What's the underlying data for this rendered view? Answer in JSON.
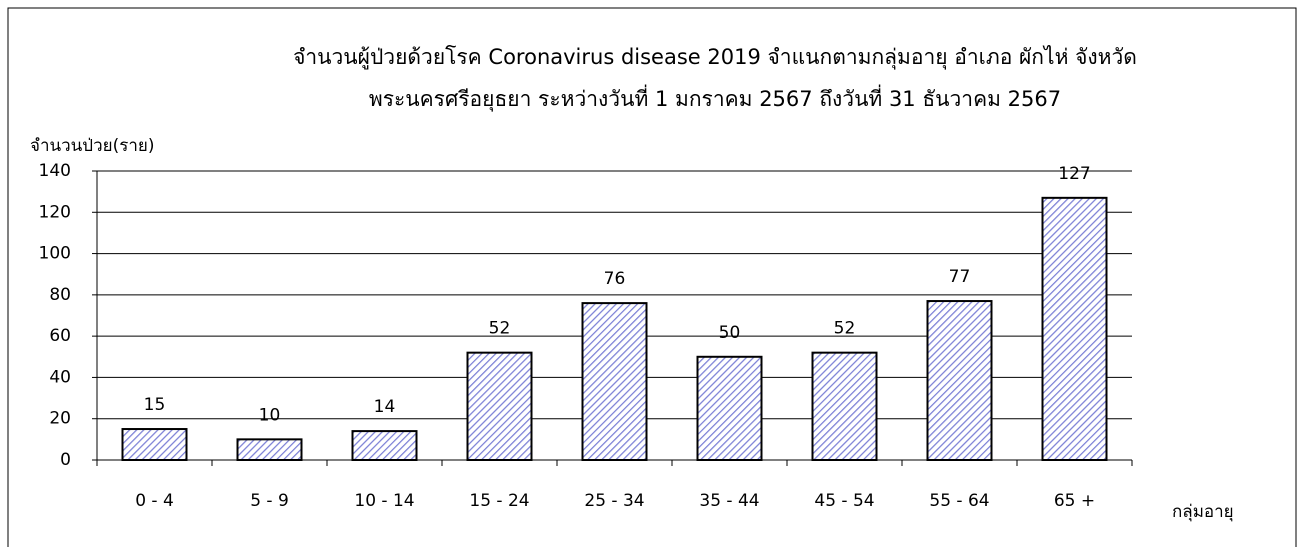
{
  "chart_data": {
    "type": "bar",
    "title": [
      "จำนวนผู้ป่วยด้วยโรค Coronavirus disease 2019  จำแนกตามกลุ่มอายุ อำเภอ  ผักไห่ จังหวัด",
      "พระนครศรีอยุธยา  ระหว่างวันที่  1 มกราคม 2567  ถึงวันที่ 31 ธันวาคม 2567"
    ],
    "y_label": "จำนวนป่วย(ราย)",
    "x_label": "กลุ่มอายุ",
    "categories": [
      "0 - 4",
      "5 - 9",
      "10 - 14",
      "15 - 24",
      "25 - 34",
      "35 - 44",
      "45 - 54",
      "55 - 64",
      "65 +"
    ],
    "values": [
      15,
      10,
      14,
      52,
      76,
      50,
      52,
      77,
      127
    ],
    "color": "#7b80d6",
    "ylim": [
      0,
      140
    ],
    "yticks": [
      0,
      20,
      40,
      60,
      80,
      100,
      120,
      140
    ],
    "grid": true
  }
}
